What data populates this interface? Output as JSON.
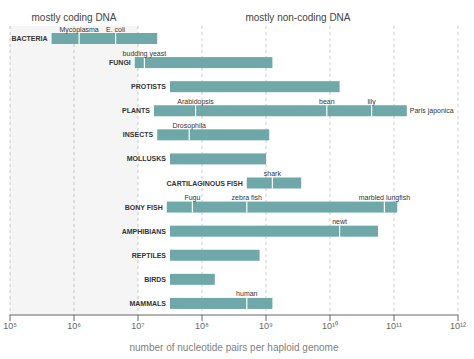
{
  "chart_data": {
    "type": "bar",
    "orientation": "horizontal",
    "log": "x",
    "grid": true,
    "tick_labels": "x",
    "title_left": "mostly coding DNA",
    "title_right": "mostly non-coding DNA",
    "title_split": 10000000,
    "xlabel": "number of nucleotide pairs per haploid genome",
    "color": "#6fa8a8",
    "xlim": [
      100000,
      1000000000000
    ],
    "xticks": [
      {
        "value": 100000,
        "label": "10⁵"
      },
      {
        "value": 1000000,
        "label": "10⁶"
      },
      {
        "value": 10000000,
        "label": "10⁷"
      },
      {
        "value": 100000000,
        "label": "10⁸"
      },
      {
        "value": 1000000000,
        "label": "10⁹"
      },
      {
        "value": 10000000000,
        "label": "10¹⁰"
      },
      {
        "value": 100000000000,
        "label": "10¹¹"
      },
      {
        "value": 1000000000000,
        "label": "10¹²"
      }
    ],
    "categories": [
      "BACTERIA",
      "FUNGI",
      "PROTISTS",
      "PLANTS",
      "INSECTS",
      "MOLLUSKS",
      "CARTILAGINOUS FISH",
      "BONY FISH",
      "AMPHIBIANS",
      "REPTILES",
      "BIRDS",
      "MAMMALS"
    ],
    "values": [
      [
        446683.59,
        19952623.1
      ],
      [
        8912509.38,
        1258925412
      ],
      [
        31622776.6,
        14125375446
      ],
      [
        17782794.1,
        158489319246
      ],
      [
        19952623.1,
        1122018454
      ],
      [
        31622776.6,
        1000000000
      ],
      [
        501187233.6,
        3548133892
      ],
      [
        28183829.3,
        112201845430
      ],
      [
        31622776.6,
        56234132519
      ],
      [
        31622776.6,
        794328234.7
      ],
      [
        31622776.6,
        158489319.2
      ],
      [
        31622776.6,
        1258925412
      ]
    ],
    "annotations": [
      {
        "category": "BACTERIA",
        "text": "Mycoplasma",
        "x": 1202264.43,
        "tick": true,
        "position": "above"
      },
      {
        "category": "BACTERIA",
        "text": "E. coli",
        "x": 4466835.92,
        "tick": true,
        "position": "above"
      },
      {
        "category": "FUNGI",
        "text": "budding yeast",
        "x": 12589254.1,
        "tick": true,
        "position": "above"
      },
      {
        "category": "PLANTS",
        "text": "Arabidopsis",
        "x": 79432823.5,
        "tick": true,
        "position": "above"
      },
      {
        "category": "PLANTS",
        "text": "bean",
        "x": 8912509381,
        "tick": true,
        "position": "above"
      },
      {
        "category": "PLANTS",
        "text": "lily",
        "x": 44668359215,
        "tick": true,
        "position": "above"
      },
      {
        "category": "PLANTS",
        "text": "Paris japonica",
        "x": 158489319246,
        "tick": false,
        "position": "right"
      },
      {
        "category": "INSECTS",
        "text": "Drosophila",
        "x": 63095734.4,
        "tick": true,
        "position": "above"
      },
      {
        "category": "CARTILAGINOUS FISH",
        "text": "shark",
        "x": 1258925412,
        "tick": true,
        "position": "above"
      },
      {
        "category": "BONY FISH",
        "text": "Fugu",
        "x": 70794578.4,
        "tick": true,
        "position": "above"
      },
      {
        "category": "BONY FISH",
        "text": "zebra fish",
        "x": 501187233.6,
        "tick": true,
        "position": "above"
      },
      {
        "category": "BONY FISH",
        "text": "marbled lungfish",
        "x": 70794578438,
        "tick": true,
        "position": "above"
      },
      {
        "category": "AMPHIBIANS",
        "text": "newt",
        "x": 14125375446,
        "tick": true,
        "position": "above"
      },
      {
        "category": "MAMMALS",
        "text": "human",
        "x": 501187233.6,
        "tick": true,
        "position": "above"
      }
    ]
  }
}
